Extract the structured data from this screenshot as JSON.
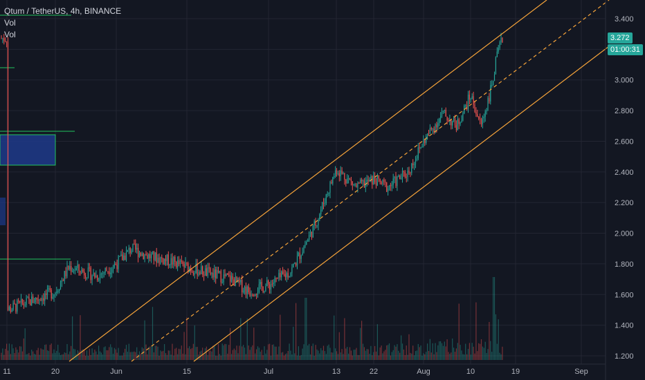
{
  "chart_data": {
    "type": "candlestick",
    "title": "Qtum / TetherUS, 4h, BINANCE",
    "indicators": [
      "Vol",
      "Vol"
    ],
    "ylim": [
      1.16,
      3.5
    ],
    "y_ticks": [
      "3.400",
      "3.200",
      "3.000",
      "2.800",
      "2.600",
      "2.400",
      "2.200",
      "2.000",
      "1.800",
      "1.600",
      "1.400",
      "1.200"
    ],
    "x_ticks": [
      "11",
      "20",
      "Jun",
      "15",
      "Jul",
      "13",
      "22",
      "Aug",
      "10",
      "19",
      "Sep"
    ],
    "last_price": "3.272",
    "countdown": "01:00:31",
    "price_path": [
      [
        "11",
        1.5
      ],
      [
        "15",
        1.55
      ],
      [
        "20",
        1.62
      ],
      [
        "23",
        1.78
      ],
      [
        "27",
        1.72
      ],
      [
        "Jun",
        1.8
      ],
      [
        "3",
        1.9
      ],
      [
        "8",
        1.85
      ],
      [
        "12",
        1.82
      ],
      [
        "15",
        1.78
      ],
      [
        "19",
        1.74
      ],
      [
        "23",
        1.7
      ],
      [
        "27",
        1.62
      ],
      [
        "Jul",
        1.66
      ],
      [
        "6",
        1.75
      ],
      [
        "9",
        2.05
      ],
      [
        "13",
        2.42
      ],
      [
        "17",
        2.3
      ],
      [
        "22",
        2.35
      ],
      [
        "26",
        2.3
      ],
      [
        "30",
        2.4
      ],
      [
        "Aug",
        2.6
      ],
      [
        "4",
        2.78
      ],
      [
        "8",
        2.7
      ],
      [
        "10",
        2.9
      ],
      [
        "12",
        2.7
      ],
      [
        "14",
        2.95
      ],
      [
        "15",
        3.15
      ],
      [
        "16",
        3.272
      ]
    ],
    "colors": {
      "up": "#26a69a",
      "down": "#ef5350",
      "channel": "#f7a43a",
      "level": "#22c55e",
      "zone": "#1e3a8a",
      "price_badge": "#26a69a"
    }
  }
}
